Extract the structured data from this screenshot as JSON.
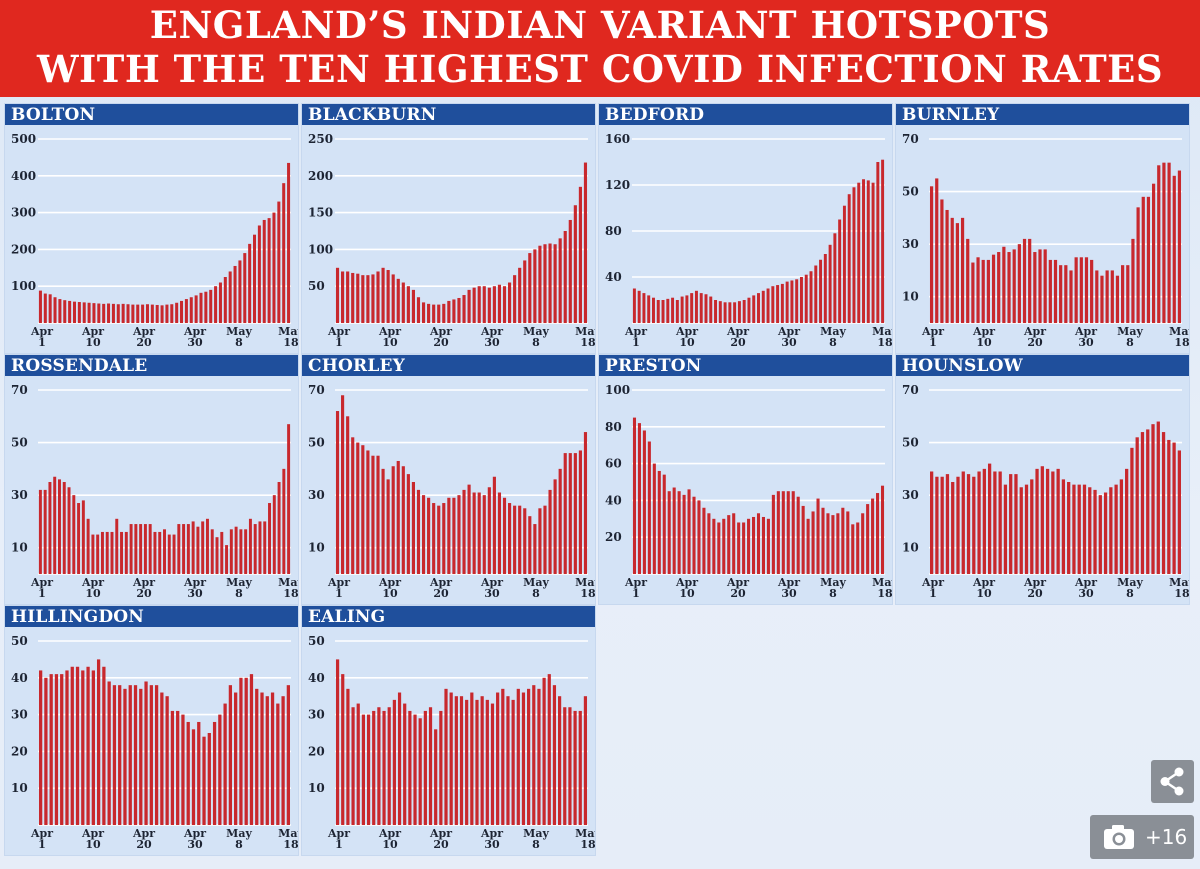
{
  "header": {
    "line1": "ENGLAND’S INDIAN VARIANT HOTSPOTS",
    "line2": "WITH THE TEN HIGHEST COVID INFECTION RATES"
  },
  "colors": {
    "bar": "#c8282d",
    "header_bg": "#e0281f",
    "panel_title_bg": "#1f4f9c",
    "panel_bg": "#d4e3f6"
  },
  "x_ticks": [
    {
      "top": "Apr",
      "bottom": "1"
    },
    {
      "top": "Apr",
      "bottom": "10"
    },
    {
      "top": "Apr",
      "bottom": "20"
    },
    {
      "top": "Apr",
      "bottom": "30"
    },
    {
      "top": "May",
      "bottom": "8"
    },
    {
      "top": "May",
      "bottom": "18"
    }
  ],
  "icons": {
    "share": "share-icon",
    "photos": "camera-icon"
  },
  "photo_count": "+16",
  "chart_data": [
    {
      "type": "bar",
      "title": "BOLTON",
      "ylim": [
        0,
        500
      ],
      "yticks": [
        100,
        200,
        300,
        400,
        500
      ],
      "values": [
        88,
        80,
        78,
        70,
        65,
        62,
        60,
        58,
        57,
        56,
        55,
        54,
        53,
        52,
        53,
        52,
        51,
        52,
        51,
        50,
        50,
        50,
        51,
        50,
        49,
        48,
        50,
        51,
        55,
        60,
        65,
        70,
        75,
        82,
        85,
        90,
        100,
        110,
        125,
        140,
        155,
        170,
        190,
        215,
        240,
        265,
        280,
        285,
        300,
        330,
        380,
        435
      ]
    },
    {
      "type": "bar",
      "title": "BLACKBURN",
      "ylim": [
        0,
        250
      ],
      "yticks": [
        50,
        100,
        150,
        200,
        250
      ],
      "values": [
        75,
        70,
        70,
        68,
        67,
        65,
        65,
        66,
        70,
        75,
        72,
        66,
        60,
        55,
        50,
        45,
        35,
        28,
        26,
        25,
        25,
        26,
        30,
        32,
        34,
        38,
        45,
        48,
        50,
        50,
        48,
        50,
        52,
        50,
        55,
        65,
        75,
        85,
        95,
        100,
        105,
        107,
        108,
        107,
        115,
        125,
        140,
        160,
        185,
        218
      ]
    },
    {
      "type": "bar",
      "title": "BEDFORD",
      "ylim": [
        0,
        160
      ],
      "yticks": [
        40,
        80,
        120,
        160
      ],
      "values": [
        30,
        28,
        26,
        24,
        22,
        20,
        20,
        21,
        22,
        20,
        23,
        24,
        26,
        28,
        26,
        25,
        23,
        20,
        19,
        18,
        18,
        18,
        19,
        20,
        22,
        24,
        26,
        28,
        30,
        32,
        33,
        34,
        36,
        37,
        38,
        40,
        42,
        45,
        50,
        55,
        60,
        68,
        78,
        90,
        102,
        112,
        118,
        122,
        125,
        124,
        122,
        140,
        142
      ]
    },
    {
      "type": "bar",
      "title": "BURNLEY",
      "ylim": [
        0,
        70
      ],
      "yticks": [
        10,
        30,
        50,
        70
      ],
      "values": [
        52,
        55,
        47,
        43,
        40,
        38,
        40,
        32,
        23,
        25,
        24,
        24,
        26,
        27,
        29,
        27,
        28,
        30,
        32,
        32,
        27,
        28,
        28,
        24,
        24,
        22,
        22,
        20,
        25,
        25,
        25,
        24,
        20,
        18,
        20,
        20,
        18,
        22,
        22,
        32,
        44,
        48,
        48,
        53,
        60,
        61,
        61,
        56,
        58
      ]
    },
    {
      "type": "bar",
      "title": "ROSSENDALE",
      "ylim": [
        0,
        70
      ],
      "yticks": [
        10,
        30,
        50,
        70
      ],
      "values": [
        32,
        32,
        35,
        37,
        36,
        35,
        33,
        30,
        27,
        28,
        21,
        15,
        15,
        16,
        16,
        16,
        21,
        16,
        16,
        19,
        19,
        19,
        19,
        19,
        16,
        16,
        17,
        15,
        15,
        19,
        19,
        19,
        20,
        18,
        20,
        21,
        17,
        14,
        16,
        11,
        17,
        18,
        17,
        17,
        21,
        19,
        20,
        20,
        27,
        30,
        35,
        40,
        57
      ]
    },
    {
      "type": "bar",
      "title": "CHORLEY",
      "ylim": [
        0,
        70
      ],
      "yticks": [
        10,
        30,
        50,
        70
      ],
      "values": [
        62,
        68,
        60,
        52,
        50,
        49,
        47,
        45,
        45,
        40,
        36,
        41,
        43,
        41,
        38,
        35,
        32,
        30,
        29,
        27,
        26,
        27,
        29,
        29,
        30,
        32,
        34,
        31,
        31,
        30,
        33,
        37,
        31,
        29,
        27,
        26,
        26,
        25,
        22,
        19,
        25,
        26,
        32,
        36,
        40,
        46,
        46,
        46,
        47,
        54
      ]
    },
    {
      "type": "bar",
      "title": "PRESTON",
      "ylim": [
        0,
        100
      ],
      "yticks": [
        20,
        40,
        60,
        80,
        100
      ],
      "values": [
        85,
        82,
        78,
        72,
        60,
        56,
        54,
        45,
        47,
        45,
        43,
        46,
        42,
        40,
        36,
        33,
        30,
        28,
        30,
        32,
        33,
        28,
        28,
        30,
        31,
        33,
        31,
        30,
        43,
        45,
        45,
        45,
        45,
        42,
        37,
        30,
        34,
        41,
        36,
        33,
        32,
        33,
        36,
        34,
        27,
        28,
        33,
        38,
        41,
        44,
        48
      ]
    },
    {
      "type": "bar",
      "title": "HOUNSLOW",
      "ylim": [
        0,
        70
      ],
      "yticks": [
        10,
        30,
        50,
        70
      ],
      "values": [
        39,
        37,
        37,
        38,
        35,
        37,
        39,
        38,
        37,
        39,
        40,
        42,
        39,
        39,
        34,
        38,
        38,
        33,
        34,
        36,
        40,
        41,
        40,
        39,
        40,
        36,
        35,
        34,
        34,
        34,
        33,
        32,
        30,
        31,
        33,
        34,
        36,
        40,
        48,
        52,
        54,
        55,
        57,
        58,
        54,
        51,
        50,
        47
      ]
    },
    {
      "type": "bar",
      "title": "HILLINGDON",
      "ylim": [
        0,
        50
      ],
      "yticks": [
        10,
        20,
        30,
        40,
        50
      ],
      "values": [
        42,
        40,
        41,
        41,
        41,
        42,
        43,
        43,
        42,
        43,
        42,
        45,
        43,
        39,
        38,
        38,
        37,
        38,
        38,
        37,
        39,
        38,
        38,
        36,
        35,
        31,
        31,
        30,
        28,
        26,
        28,
        24,
        25,
        28,
        30,
        33,
        38,
        36,
        40,
        40,
        41,
        37,
        36,
        35,
        36,
        33,
        35,
        38
      ]
    },
    {
      "type": "bar",
      "title": "EALING",
      "ylim": [
        0,
        50
      ],
      "yticks": [
        10,
        20,
        30,
        40,
        50
      ],
      "values": [
        45,
        41,
        37,
        32,
        33,
        30,
        30,
        31,
        32,
        31,
        32,
        34,
        36,
        33,
        31,
        30,
        29,
        31,
        32,
        26,
        31,
        37,
        36,
        35,
        35,
        34,
        36,
        34,
        35,
        34,
        33,
        36,
        37,
        35,
        34,
        37,
        36,
        37,
        38,
        37,
        40,
        41,
        38,
        35,
        32,
        32,
        31,
        31,
        35
      ]
    }
  ]
}
